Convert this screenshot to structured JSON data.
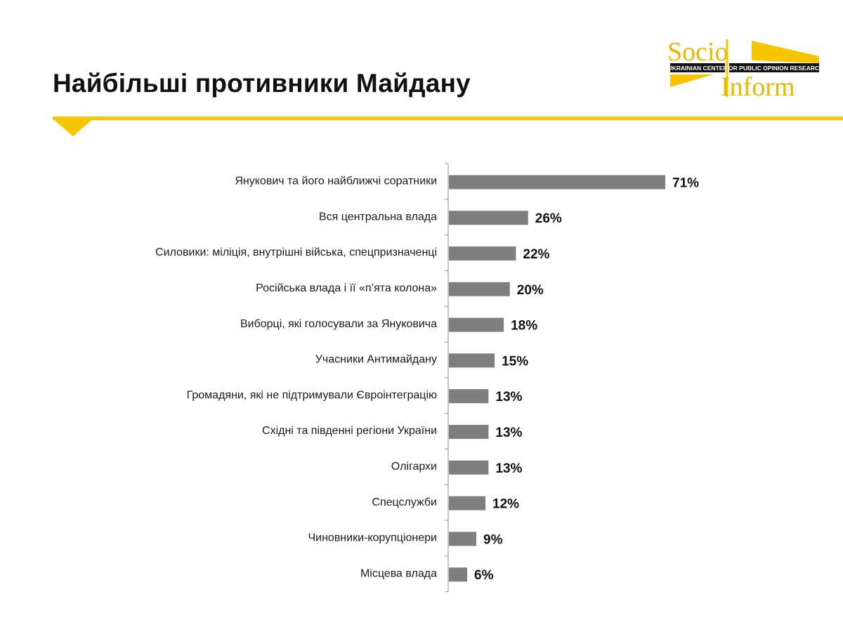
{
  "header": {
    "title": "Найбільші противники Майдану"
  },
  "logo": {
    "word1": "Socio",
    "word2": "Inform",
    "left_band": "UKRAINIAN CENTER",
    "right_band": "FOR PUBLIC OPINION RESEARCH"
  },
  "colors": {
    "bar": "#7f7f7f",
    "accent": "#f7c600",
    "axis": "#8c8c8c"
  },
  "chart_data": {
    "type": "bar",
    "orientation": "horizontal",
    "categories": [
      "Янукович та його найближчі соратники",
      "Вся центральна влада",
      "Силовики: міліція, внутрішні війська, спецпризначенці",
      "Російська влада і її «п’ята колона»",
      "Виборці, які голосували за Януковича",
      "Учасники Антимайдану",
      "Громадяни, які не підтримували Євроінтеграцію",
      "Східні та південні регіони України",
      "Олігархи",
      "Спецслужби",
      "Чиновники-корупціонери",
      "Місцева влада"
    ],
    "values": [
      71,
      26,
      22,
      20,
      18,
      15,
      13,
      13,
      13,
      12,
      9,
      6
    ],
    "value_labels": [
      "71%",
      "26%",
      "22%",
      "20%",
      "18%",
      "15%",
      "13%",
      "13%",
      "13%",
      "12%",
      "9%",
      "6%"
    ],
    "xlim": [
      0,
      71
    ],
    "grid": false,
    "legend": "none"
  }
}
